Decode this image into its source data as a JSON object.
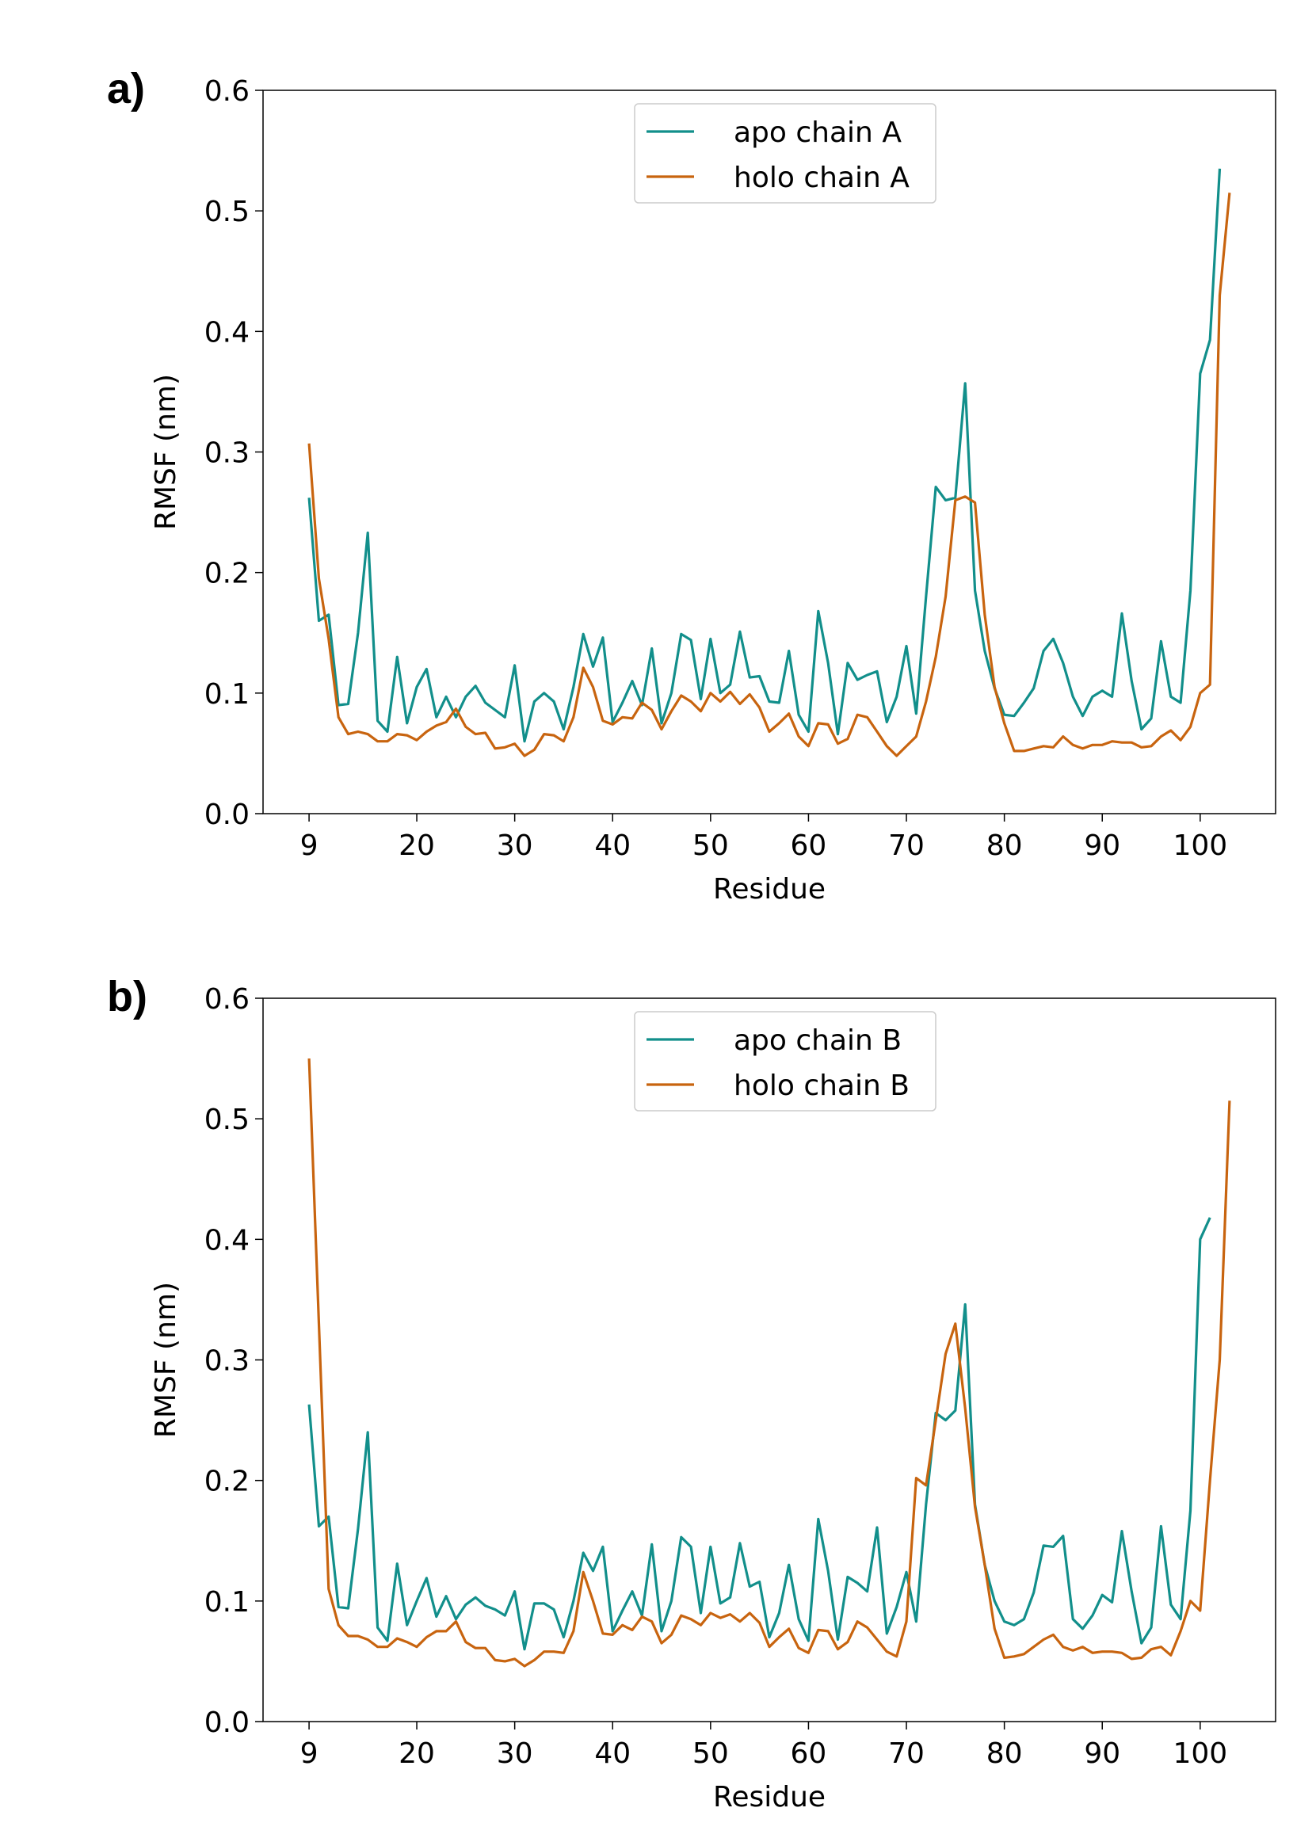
{
  "chart_data": [
    {
      "type": "line",
      "panel_label": "a)",
      "xlabel": "Residue",
      "ylabel": "RMSF (nm)",
      "legend": "upper center",
      "xlim": [
        4.3,
        107.7
      ],
      "ylim": [
        0,
        0.6
      ],
      "xticks": [
        9,
        20,
        30,
        40,
        50,
        60,
        70,
        80,
        90,
        100
      ],
      "yticks": [
        {
          "value": 0,
          "label": "0.0"
        },
        0.1,
        0.2,
        0.3,
        0.4,
        0.5,
        0.6
      ],
      "x": [
        9,
        10,
        11,
        12,
        13,
        14,
        15,
        16,
        17,
        18,
        19,
        20,
        21,
        22,
        23,
        24,
        25,
        26,
        27,
        28,
        29,
        30,
        31,
        32,
        33,
        34,
        35,
        36,
        37,
        38,
        39,
        40,
        41,
        42,
        43,
        44,
        45,
        46,
        47,
        48,
        49,
        50,
        51,
        52,
        53,
        54,
        55,
        56,
        57,
        58,
        59,
        60,
        61,
        62,
        63,
        64,
        65,
        66,
        67,
        68,
        69,
        70,
        71,
        72,
        73,
        74,
        75,
        76,
        77,
        78,
        79,
        80,
        81,
        82,
        83,
        84,
        85,
        86,
        87,
        88,
        89,
        90,
        91,
        92,
        93,
        94,
        95,
        96,
        97,
        98,
        99,
        100,
        101,
        102,
        103
      ],
      "series": [
        {
          "name": "apo chain A",
          "color": "#128f8b",
          "values": [
            0.262,
            0.16,
            0.165,
            0.09,
            0.091,
            0.15,
            0.233,
            0.077,
            0.068,
            0.13,
            0.075,
            0.105,
            0.12,
            0.08,
            0.097,
            0.08,
            0.097,
            0.106,
            0.092,
            0.086,
            0.08,
            0.123,
            0.06,
            0.093,
            0.1,
            0.093,
            0.07,
            0.105,
            0.149,
            0.122,
            0.146,
            0.076,
            0.092,
            0.11,
            0.09,
            0.137,
            0.075,
            0.1,
            0.149,
            0.144,
            0.095,
            0.145,
            0.1,
            0.107,
            0.151,
            0.113,
            0.114,
            0.093,
            0.092,
            0.135,
            0.082,
            0.068,
            0.168,
            0.125,
            0.066,
            0.125,
            0.111,
            0.115,
            0.118,
            0.076,
            0.097,
            0.139,
            0.083,
            0.18,
            0.271,
            0.26,
            0.262,
            0.357,
            0.185,
            0.135,
            0.104,
            0.082,
            0.081,
            0.092,
            0.104,
            0.135,
            0.145,
            0.125,
            0.097,
            0.081,
            0.097,
            0.102,
            0.097,
            0.166,
            0.11,
            0.07,
            0.079,
            0.143,
            0.097,
            0.092,
            0.185,
            0.365,
            0.393,
            0.535,
            null
          ]
        },
        {
          "name": "holo chain A",
          "color": "#c8640f",
          "values": [
            0.307,
            0.195,
            0.145,
            0.08,
            0.066,
            0.068,
            0.066,
            0.06,
            0.06,
            0.066,
            0.065,
            0.061,
            0.068,
            0.073,
            0.076,
            0.087,
            0.072,
            0.066,
            0.067,
            0.054,
            0.055,
            0.058,
            0.048,
            0.053,
            0.066,
            0.065,
            0.06,
            0.08,
            0.121,
            0.105,
            0.077,
            0.074,
            0.08,
            0.079,
            0.092,
            0.086,
            0.07,
            0.085,
            0.098,
            0.093,
            0.085,
            0.1,
            0.093,
            0.101,
            0.091,
            0.099,
            0.088,
            0.068,
            0.075,
            0.083,
            0.064,
            0.056,
            0.075,
            0.074,
            0.058,
            0.062,
            0.082,
            0.08,
            0.068,
            0.056,
            0.048,
            0.056,
            0.064,
            0.093,
            0.13,
            0.18,
            0.26,
            0.263,
            0.258,
            0.165,
            0.105,
            0.075,
            0.052,
            0.052,
            0.054,
            0.056,
            0.055,
            0.064,
            0.057,
            0.054,
            0.057,
            0.057,
            0.06,
            0.059,
            0.059,
            0.055,
            0.056,
            0.064,
            0.069,
            0.061,
            0.072,
            0.1,
            0.107,
            0.43,
            0.515
          ]
        }
      ]
    },
    {
      "type": "line",
      "panel_label": "b)",
      "xlabel": "Residue",
      "ylabel": "RMSF (nm)",
      "legend": "upper center",
      "xlim": [
        4.3,
        107.7
      ],
      "ylim": [
        0,
        0.6
      ],
      "xticks": [
        9,
        20,
        30,
        40,
        50,
        60,
        70,
        80,
        90,
        100
      ],
      "yticks": [
        {
          "value": 0,
          "label": "0.0"
        },
        0.1,
        0.2,
        0.3,
        0.4,
        0.5,
        0.6
      ],
      "x": [
        9,
        10,
        11,
        12,
        13,
        14,
        15,
        16,
        17,
        18,
        19,
        20,
        21,
        22,
        23,
        24,
        25,
        26,
        27,
        28,
        29,
        30,
        31,
        32,
        33,
        34,
        35,
        36,
        37,
        38,
        39,
        40,
        41,
        42,
        43,
        44,
        45,
        46,
        47,
        48,
        49,
        50,
        51,
        52,
        53,
        54,
        55,
        56,
        57,
        58,
        59,
        60,
        61,
        62,
        63,
        64,
        65,
        66,
        67,
        68,
        69,
        70,
        71,
        72,
        73,
        74,
        75,
        76,
        77,
        78,
        79,
        80,
        81,
        82,
        83,
        84,
        85,
        86,
        87,
        88,
        89,
        90,
        91,
        92,
        93,
        94,
        95,
        96,
        97,
        98,
        99,
        100,
        101,
        102,
        103
      ],
      "series": [
        {
          "name": "apo chain B",
          "color": "#128f8b",
          "values": [
            0.263,
            0.162,
            0.17,
            0.095,
            0.094,
            0.16,
            0.24,
            0.078,
            0.067,
            0.131,
            0.08,
            0.1,
            0.119,
            0.087,
            0.104,
            0.085,
            0.097,
            0.103,
            0.096,
            0.093,
            0.088,
            0.108,
            0.06,
            0.098,
            0.098,
            0.093,
            0.07,
            0.1,
            0.14,
            0.125,
            0.145,
            0.075,
            0.092,
            0.108,
            0.088,
            0.147,
            0.075,
            0.1,
            0.153,
            0.145,
            0.09,
            0.145,
            0.098,
            0.103,
            0.148,
            0.112,
            0.116,
            0.07,
            0.09,
            0.13,
            0.085,
            0.067,
            0.168,
            0.125,
            0.068,
            0.12,
            0.115,
            0.108,
            0.161,
            0.073,
            0.095,
            0.124,
            0.083,
            0.18,
            0.256,
            0.25,
            0.258,
            0.346,
            0.18,
            0.13,
            0.1,
            0.083,
            0.08,
            0.085,
            0.107,
            0.146,
            0.145,
            0.154,
            0.085,
            0.077,
            0.088,
            0.105,
            0.099,
            0.158,
            0.108,
            0.065,
            0.078,
            0.162,
            0.097,
            0.085,
            0.175,
            0.4,
            0.418,
            null,
            null
          ]
        },
        {
          "name": "holo chain B",
          "color": "#c8640f",
          "values": [
            0.55,
            0.33,
            0.11,
            0.08,
            0.071,
            0.071,
            0.068,
            0.062,
            0.062,
            0.069,
            0.066,
            0.062,
            0.07,
            0.075,
            0.075,
            0.083,
            0.066,
            0.061,
            0.061,
            0.051,
            0.05,
            0.052,
            0.046,
            0.051,
            0.058,
            0.058,
            0.057,
            0.075,
            0.124,
            0.1,
            0.073,
            0.072,
            0.08,
            0.076,
            0.087,
            0.083,
            0.065,
            0.072,
            0.088,
            0.085,
            0.08,
            0.09,
            0.086,
            0.089,
            0.083,
            0.09,
            0.082,
            0.062,
            0.07,
            0.077,
            0.061,
            0.057,
            0.076,
            0.075,
            0.06,
            0.066,
            0.083,
            0.078,
            0.068,
            0.058,
            0.054,
            0.083,
            0.202,
            0.196,
            0.25,
            0.305,
            0.33,
            0.26,
            0.178,
            0.13,
            0.077,
            0.053,
            0.054,
            0.056,
            0.062,
            0.068,
            0.072,
            0.062,
            0.059,
            0.062,
            0.057,
            0.058,
            0.058,
            0.057,
            0.052,
            0.053,
            0.06,
            0.062,
            0.055,
            0.075,
            0.1,
            0.092,
            0.2,
            0.3,
            0.515
          ]
        }
      ]
    }
  ]
}
